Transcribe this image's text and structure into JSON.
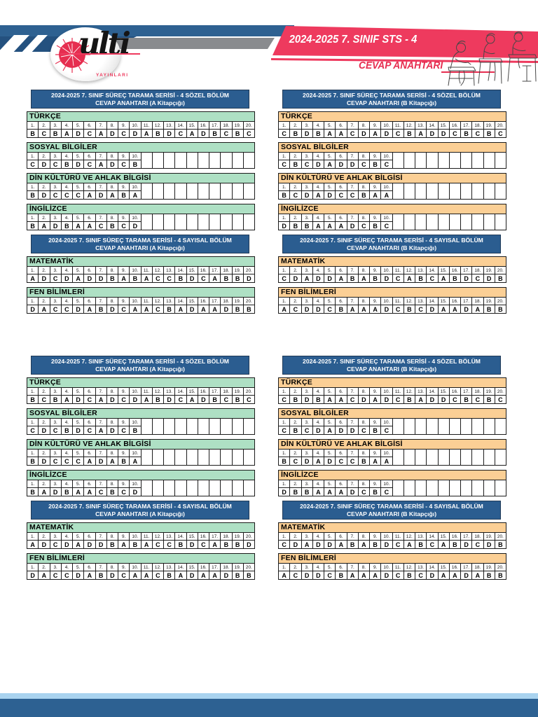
{
  "header": {
    "logo": {
      "text": "ulti",
      "subtext": "YAYINLARI"
    },
    "banner_title": "2024-2025 7. SINIF STS - 4",
    "subtitle": "CEVAP ANAHTARI"
  },
  "colors": {
    "band_blue": "#2e6191",
    "navy": "#24517f",
    "gray": "#898b8e",
    "red": "#ee3a5e",
    "red_text": "#e62e50",
    "title_blue": "#2b5d90",
    "footer_light": "#a9d3ef",
    "footer_dark": "#2d6192",
    "booklet_a_accent": "#aee0c4",
    "booklet_b_accent": "#fbcf95"
  },
  "layout": {
    "repeat_rows": 2
  },
  "grid": {
    "columns": 20
  },
  "booklets": [
    {
      "id": "A",
      "accent": "#aee0c4",
      "groups": [
        {
          "title_line1": "2024-2025 7. SINIF SÜREÇ TARAMA SERİSİ - 4 SÖZEL BÖLÜM",
          "title_line2": "CEVAP ANAHTARI (A Kitapçığı)",
          "sections": [
            {
              "name": "TÜRKÇE",
              "answers": [
                "B",
                "C",
                "B",
                "A",
                "D",
                "C",
                "A",
                "D",
                "C",
                "D",
                "A",
                "B",
                "D",
                "C",
                "A",
                "D",
                "B",
                "C",
                "B",
                "C"
              ]
            },
            {
              "name": "SOSYAL BİLGİLER",
              "answers": [
                "C",
                "D",
                "C",
                "B",
                "D",
                "C",
                "A",
                "D",
                "C",
                "B"
              ]
            },
            {
              "name": "DİN KÜLTÜRÜ VE AHLAK BİLGİSİ",
              "answers": [
                "B",
                "D",
                "C",
                "C",
                "C",
                "A",
                "D",
                "A",
                "B",
                "A"
              ]
            },
            {
              "name": "İNGİLİZCE",
              "answers": [
                "B",
                "A",
                "D",
                "B",
                "A",
                "A",
                "C",
                "B",
                "C",
                "D"
              ]
            }
          ]
        },
        {
          "title_line1": "2024-2025 7. SINIF SÜREÇ TARAMA SERİSİ - 4 SAYISAL BÖLÜM",
          "title_line2": "CEVAP ANAHTARI (A Kitapçığı)",
          "sections": [
            {
              "name": "MATEMATİK",
              "answers": [
                "A",
                "D",
                "C",
                "D",
                "A",
                "D",
                "D",
                "B",
                "A",
                "B",
                "A",
                "C",
                "C",
                "B",
                "D",
                "C",
                "A",
                "B",
                "B",
                "D"
              ]
            },
            {
              "name": "FEN BİLİMLERİ",
              "answers": [
                "D",
                "A",
                "C",
                "C",
                "D",
                "A",
                "B",
                "D",
                "C",
                "A",
                "A",
                "C",
                "B",
                "A",
                "D",
                "A",
                "A",
                "D",
                "B",
                "B"
              ]
            }
          ]
        }
      ]
    },
    {
      "id": "B",
      "accent": "#fbcf95",
      "groups": [
        {
          "title_line1": "2024-2025 7. SINIF SÜREÇ TARAMA SERİSİ - 4 SÖZEL BÖLÜM",
          "title_line2": "CEVAP ANAHTARI (B Kitapçığı)",
          "sections": [
            {
              "name": "TÜRKÇE",
              "answers": [
                "C",
                "B",
                "D",
                "B",
                "A",
                "A",
                "C",
                "D",
                "A",
                "D",
                "C",
                "B",
                "A",
                "D",
                "D",
                "C",
                "B",
                "C",
                "B",
                "C"
              ]
            },
            {
              "name": "SOSYAL BİLGİLER",
              "answers": [
                "C",
                "B",
                "C",
                "D",
                "A",
                "D",
                "D",
                "C",
                "B",
                "C"
              ]
            },
            {
              "name": "DİN KÜLTÜRÜ VE AHLAK BİLGİSİ",
              "answers": [
                "B",
                "C",
                "D",
                "A",
                "D",
                "C",
                "C",
                "B",
                "A",
                "A"
              ]
            },
            {
              "name": "İNGİLİZCE",
              "answers": [
                "D",
                "B",
                "B",
                "A",
                "A",
                "A",
                "D",
                "C",
                "B",
                "C"
              ]
            }
          ]
        },
        {
          "title_line1": "2024-2025 7. SINIF SÜREÇ TARAMA SERİSİ - 4 SAYISAL BÖLÜM",
          "title_line2": "CEVAP ANAHTARI (B Kitapçığı)",
          "sections": [
            {
              "name": "MATEMATİK",
              "answers": [
                "C",
                "D",
                "A",
                "D",
                "D",
                "A",
                "B",
                "A",
                "B",
                "D",
                "C",
                "A",
                "B",
                "C",
                "A",
                "B",
                "D",
                "C",
                "D",
                "B"
              ]
            },
            {
              "name": "FEN BİLİMLERİ",
              "answers": [
                "A",
                "C",
                "D",
                "D",
                "C",
                "B",
                "A",
                "A",
                "A",
                "D",
                "C",
                "B",
                "C",
                "D",
                "A",
                "A",
                "D",
                "A",
                "B",
                "B"
              ]
            }
          ]
        }
      ]
    }
  ]
}
